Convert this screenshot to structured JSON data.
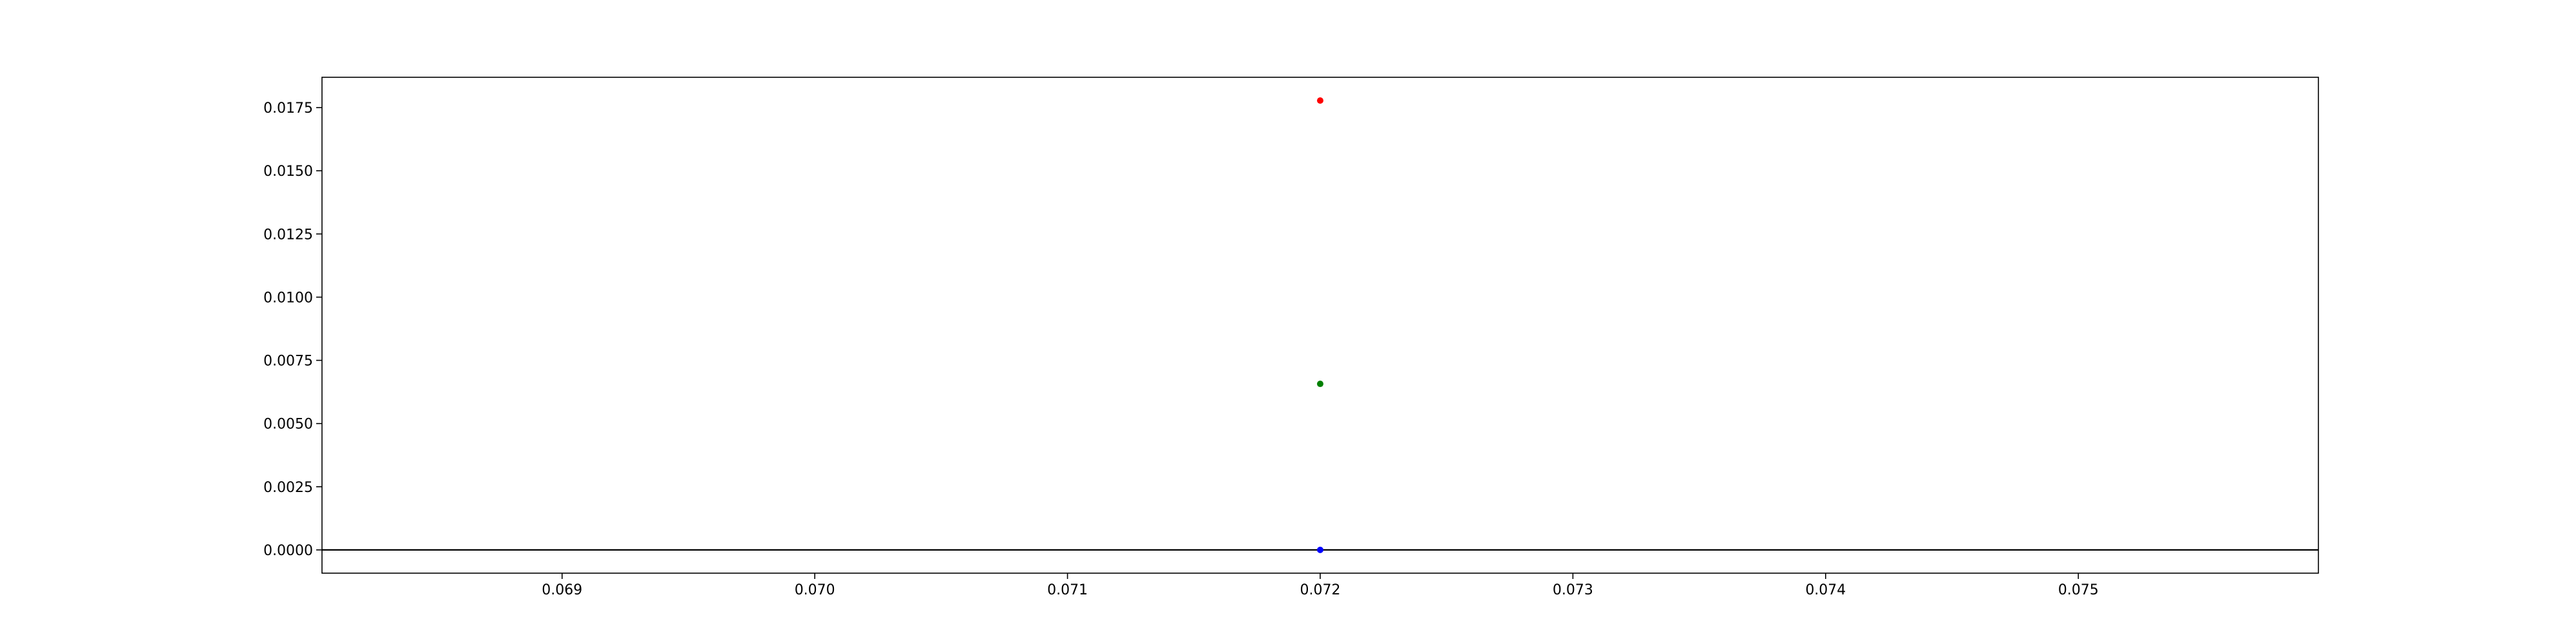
{
  "chart_data": {
    "type": "scatter",
    "title": "",
    "xlabel": "",
    "ylabel": "",
    "xlim": [
      0.06805,
      0.07595
    ],
    "ylim": [
      -0.00092,
      0.0187
    ],
    "x_ticks": [
      0.069,
      0.07,
      0.071,
      0.072,
      0.073,
      0.074,
      0.075
    ],
    "x_tick_labels": [
      "0.069",
      "0.070",
      "0.071",
      "0.072",
      "0.073",
      "0.074",
      "0.075"
    ],
    "y_ticks": [
      0.0,
      0.0025,
      0.005,
      0.0075,
      0.01,
      0.0125,
      0.015,
      0.0175
    ],
    "y_tick_labels": [
      "0.0000",
      "0.0025",
      "0.0050",
      "0.0075",
      "0.0100",
      "0.0125",
      "0.0150",
      "0.0175"
    ],
    "grid": false,
    "hline": {
      "y": 0.0,
      "color": "#000000"
    },
    "series": [
      {
        "color": "#ff0000",
        "points": [
          {
            "x": 0.072,
            "y": 0.01778
          }
        ]
      },
      {
        "color": "#008000",
        "points": [
          {
            "x": 0.072,
            "y": 0.00657
          }
        ]
      },
      {
        "color": "#0000ff",
        "points": [
          {
            "x": 0.072,
            "y": 0.0
          }
        ]
      }
    ]
  }
}
